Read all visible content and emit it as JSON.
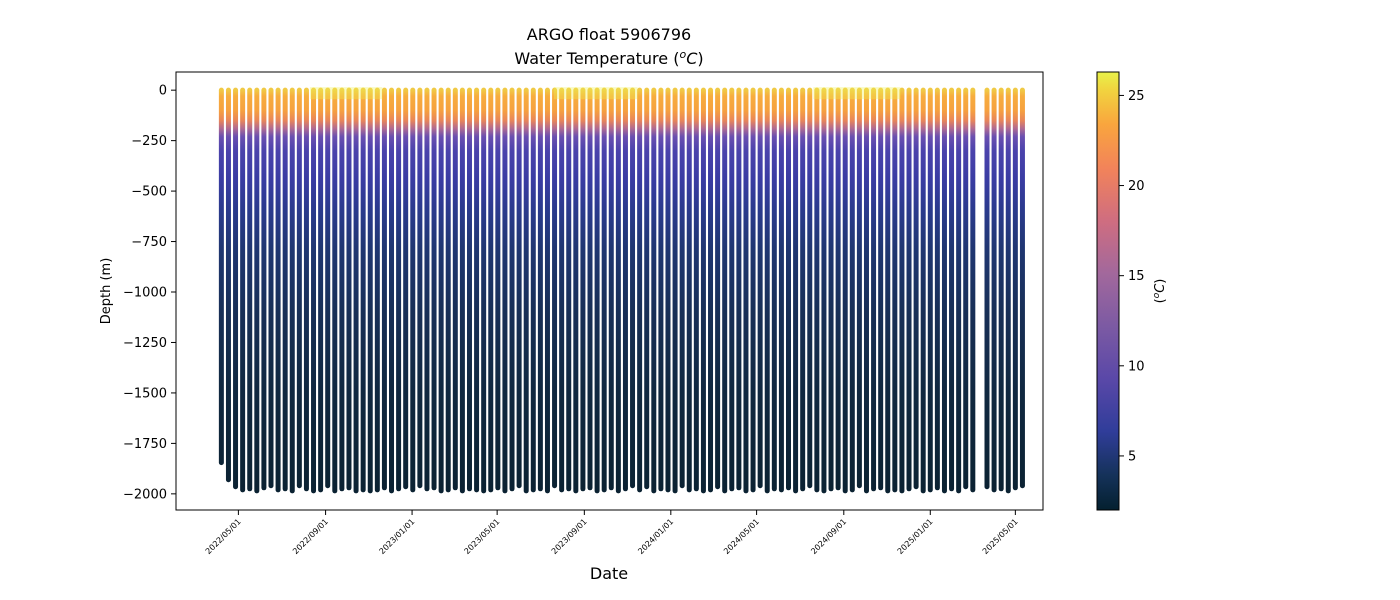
{
  "chart_data": {
    "type": "scatter",
    "title": "ARGO float 5906796",
    "subtitle_prefix": "Water Temperature (",
    "subtitle_unit_sup": "o",
    "subtitle_unit": "C",
    "subtitle_suffix": ")",
    "xlabel": "Date",
    "ylabel": "Depth (m)",
    "colorbar_label_prefix": "(",
    "colorbar_label_sup": "o",
    "colorbar_label_unit": "C",
    "colorbar_label_suffix": ")",
    "ylim": [
      -2080,
      90
    ],
    "xlim": [
      "2022-02-02",
      "2025-06-09"
    ],
    "yticks": [
      0,
      -250,
      -500,
      -750,
      -1000,
      -1250,
      -1500,
      -1750,
      -2000
    ],
    "ytick_labels": [
      "0",
      "−250",
      "−500",
      "−750",
      "−1000",
      "−1250",
      "−1500",
      "−1750",
      "−2000"
    ],
    "xticks": [
      "2022-05-01",
      "2022-09-01",
      "2023-01-01",
      "2023-05-01",
      "2023-09-01",
      "2024-01-01",
      "2024-05-01",
      "2024-09-01",
      "2025-01-01",
      "2025-05-01"
    ],
    "xtick_labels": [
      "2022/05/01",
      "2022/09/01",
      "2023/01/01",
      "2023/05/01",
      "2023/09/01",
      "2024/01/01",
      "2024/05/01",
      "2024/09/01",
      "2025/01/01",
      "2025/05/01"
    ],
    "colorbar": {
      "range": [
        2.0,
        26.3
      ],
      "ticks": [
        5,
        10,
        15,
        20,
        25
      ],
      "tick_labels": [
        "5",
        "10",
        "15",
        "20",
        "25"
      ],
      "colormap": "thermal"
    },
    "profiles": {
      "start_date": "2022-04-07",
      "interval_days": 10,
      "count": 114,
      "missing_indices": [
        107
      ],
      "max_depths": [
        -1845,
        -1930,
        -1965,
        -1980,
        -1975,
        -1985,
        -1970,
        -1960,
        -1980,
        -1975,
        -1985,
        -1960,
        -1975,
        -1985,
        -1980,
        -1960,
        -1985,
        -1975,
        -1970,
        -1985,
        -1980,
        -1985,
        -1980,
        -1970,
        -1985,
        -1975,
        -1965,
        -1980,
        -1960,
        -1975,
        -1970,
        -1985,
        -1980,
        -1970,
        -1985,
        -1975,
        -1980,
        -1985,
        -1980,
        -1970,
        -1985,
        -1975,
        -1960,
        -1985,
        -1980,
        -1975,
        -1985,
        -1960,
        -1980,
        -1975,
        -1985,
        -1975,
        -1970,
        -1985,
        -1980,
        -1970,
        -1985,
        -1975,
        -1960,
        -1980,
        -1965,
        -1985,
        -1975,
        -1980,
        -1985,
        -1960,
        -1980,
        -1975,
        -1985,
        -1980,
        -1965,
        -1985,
        -1975,
        -1970,
        -1985,
        -1980,
        -1960,
        -1985,
        -1975,
        -1980,
        -1970,
        -1985,
        -1975,
        -1960,
        -1980,
        -1985,
        -1975,
        -1970,
        -1985,
        -1980,
        -1960,
        -1985,
        -1975,
        -1970,
        -1985,
        -1980,
        -1985,
        -1975,
        -1965,
        -1985,
        -1980,
        -1970,
        -1985,
        -1975,
        -1985,
        -1965,
        -1980,
        -1970,
        -1965,
        -1980,
        -1975,
        -1985,
        -1970,
        -1960
      ]
    }
  }
}
